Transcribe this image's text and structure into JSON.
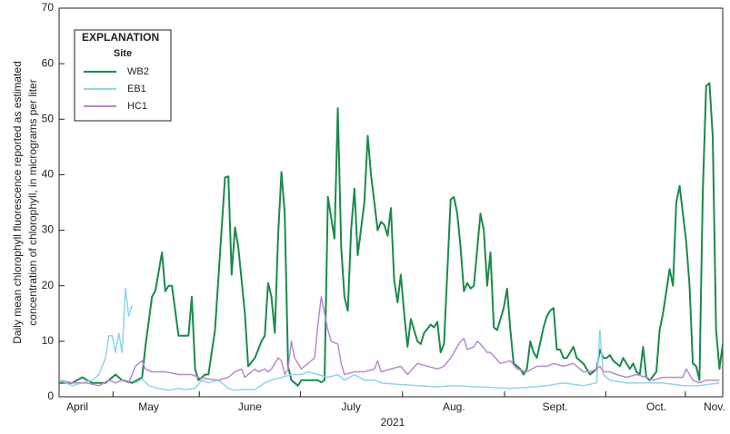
{
  "chart_data": {
    "type": "line",
    "y_label_lines": [
      "Daily mean chlorophyll fluorescence reported as estimated",
      "concentration of chlorophyll, in micrograms per liter"
    ],
    "x_label": "2021",
    "legend_title": "EXPLANATION",
    "legend_subtitle": "Site",
    "xlim": [
      109,
      309
    ],
    "xticks": [
      {
        "value": 114.5,
        "label": "April"
      },
      {
        "value": 136,
        "label": "May"
      },
      {
        "value": 166.5,
        "label": "June"
      },
      {
        "value": 197,
        "label": "July"
      },
      {
        "value": 228,
        "label": "Aug."
      },
      {
        "value": 258.5,
        "label": "Sept."
      },
      {
        "value": 289,
        "label": "Oct."
      },
      {
        "value": 306.5,
        "label": "Nov."
      }
    ],
    "ylim": [
      0,
      70
    ],
    "yticks": [
      0,
      10,
      20,
      30,
      40,
      50,
      60,
      70
    ],
    "series": [
      {
        "name": "WB2",
        "color": "#1b8a4c",
        "x": [
          109,
          113,
          116,
          119,
          123,
          126,
          128,
          131,
          134,
          135,
          137,
          138,
          140,
          141,
          142,
          143,
          145,
          147,
          148,
          149,
          150,
          151,
          153,
          154,
          156,
          159,
          160,
          161,
          162,
          163,
          165,
          166,
          168,
          170,
          171,
          172,
          173,
          174,
          175,
          176,
          177,
          178,
          179,
          181,
          182,
          184,
          187,
          188,
          189,
          190,
          192,
          193,
          194,
          195,
          196,
          197,
          198,
          199,
          201,
          202,
          203,
          204,
          205,
          206,
          207,
          208,
          209,
          210,
          211,
          212,
          213,
          214,
          215,
          217,
          218,
          219,
          221,
          222,
          223,
          224,
          225,
          227,
          228,
          229,
          230,
          231,
          232,
          233,
          234,
          236,
          237,
          238,
          239,
          240,
          241,
          242,
          243,
          244,
          245,
          246,
          248,
          249,
          250,
          251,
          252,
          253,
          255,
          256,
          257,
          258,
          259,
          260,
          261,
          262,
          263,
          264,
          265,
          267,
          268,
          269,
          270,
          271,
          272,
          273,
          274,
          275,
          276,
          278,
          279,
          280,
          281,
          282,
          283,
          284,
          285,
          286,
          287,
          289,
          290,
          291,
          292,
          293,
          294,
          295,
          296,
          297,
          298,
          299,
          300,
          301,
          302,
          303,
          304,
          305,
          306,
          307,
          308,
          309
        ],
        "values": [
          2.5,
          2.5,
          3.5,
          2.5,
          2.5,
          4,
          3,
          2.5,
          3.5,
          9,
          18,
          19,
          26,
          19,
          20,
          20,
          11,
          11,
          11,
          18,
          5,
          3,
          4,
          4,
          12,
          39.5,
          39.7,
          22,
          30.5,
          27,
          15,
          5.5,
          7,
          10,
          11,
          20.5,
          18,
          11.5,
          29,
          40.5,
          33,
          5.5,
          3,
          2,
          3,
          3,
          3,
          2.6,
          3,
          36,
          28.5,
          52,
          27,
          18,
          15.5,
          30,
          37.5,
          25.5,
          35,
          47,
          40,
          35,
          30,
          31.5,
          31,
          29,
          34,
          21,
          17,
          22,
          15,
          9,
          14,
          10,
          9.5,
          11.5,
          13,
          12.5,
          13.5,
          8,
          9.5,
          35.5,
          36,
          33,
          27,
          19,
          20.5,
          19.5,
          20,
          33,
          30,
          20,
          26,
          12.5,
          12,
          14,
          16,
          19.5,
          12,
          6,
          5,
          4,
          5,
          10,
          8,
          7,
          12.5,
          14.5,
          15.5,
          16,
          8.5,
          8.5,
          7,
          7,
          8,
          9,
          7,
          6,
          5,
          4,
          4.5,
          5,
          8.5,
          7,
          7,
          7.5,
          6.5,
          5.5,
          7,
          6,
          5,
          6,
          4.5,
          4,
          9,
          3.5,
          3,
          4.5,
          12,
          15,
          19,
          23,
          20,
          35,
          38,
          33,
          28,
          20,
          6,
          5.5,
          3,
          37,
          56,
          56.5,
          47,
          12,
          5,
          9.5
        ]
      },
      {
        "name": "EB1",
        "color": "#8fd4ea",
        "x": [
          109,
          111,
          113,
          116,
          119,
          121,
          123,
          124,
          125,
          126,
          127,
          128,
          129,
          130,
          131,
          null,
          132,
          134,
          136,
          139,
          142,
          145,
          147,
          150,
          152,
          154,
          157,
          160,
          162,
          165,
          168,
          171,
          173,
          176,
          179,
          182,
          184,
          187,
          190,
          193,
          195,
          198,
          201,
          204,
          206,
          212,
          217,
          223,
          228,
          234,
          239,
          245,
          250,
          256,
          261,
          267,
          271,
          272,
          273,
          275,
          280,
          286,
          291,
          297,
          302,
          308
        ],
        "values": [
          3,
          2.5,
          2,
          2.5,
          3,
          4,
          7,
          11,
          11,
          8,
          11.5,
          8,
          19.5,
          14.5,
          16.5,
          null,
          2.5,
          3.2,
          2,
          1.5,
          1.2,
          1.5,
          1.3,
          1.5,
          3,
          2.5,
          3,
          1.5,
          1.2,
          1.3,
          1.3,
          2.5,
          3,
          3.5,
          4,
          4,
          4.5,
          4,
          3.5,
          4,
          3,
          4,
          3,
          3,
          2.5,
          2.2,
          2,
          1.8,
          2,
          1.8,
          1.7,
          1.5,
          1.7,
          2,
          2.5,
          2,
          2.5,
          12,
          4,
          3,
          2.5,
          2.5,
          2.5,
          2,
          2,
          2.5
        ]
      },
      {
        "name": "HC1",
        "color": "#b98bcb",
        "x": [
          109,
          113,
          117,
          121,
          124,
          126,
          128,
          130,
          131,
          132,
          134,
          135,
          137,
          141,
          145,
          149,
          151,
          154,
          157,
          160,
          162,
          164,
          165,
          167,
          168,
          169,
          171,
          172,
          173,
          175,
          176,
          177,
          178,
          179,
          180,
          182,
          184,
          186,
          187,
          188,
          190,
          191,
          193,
          194,
          195,
          198,
          201,
          204,
          205,
          206,
          209,
          212,
          214,
          217,
          220,
          223,
          225,
          227,
          228,
          230,
          231,
          232,
          234,
          235,
          236,
          238,
          239,
          242,
          245,
          247,
          250,
          253,
          256,
          258,
          261,
          264,
          267,
          269,
          271,
          272,
          273,
          275,
          277,
          280,
          283,
          286,
          288,
          291,
          294,
          297,
          298,
          300,
          302,
          304,
          308
        ],
        "values": [
          3,
          2.5,
          2.5,
          2,
          3,
          2.5,
          3,
          2.5,
          4,
          5.5,
          6.5,
          5,
          4.5,
          4.5,
          4,
          4,
          3.5,
          3.2,
          3,
          3.5,
          4.5,
          5,
          3.5,
          4.5,
          5,
          4.5,
          5,
          4.5,
          5,
          7,
          6.5,
          4,
          5,
          10,
          7,
          5,
          6,
          7,
          13,
          18,
          12,
          10,
          9.5,
          6,
          4,
          4.5,
          4.5,
          5,
          6.5,
          4.5,
          5,
          5.5,
          4,
          6,
          5.5,
          5,
          5.5,
          7,
          8,
          10,
          10.5,
          8.5,
          9,
          10,
          9.5,
          8,
          8,
          6,
          6.5,
          5,
          4.5,
          5.5,
          5.5,
          6,
          5.5,
          6,
          4.5,
          4.5,
          5,
          5.5,
          4.5,
          4.5,
          4,
          3.5,
          4,
          3.5,
          3,
          3.5,
          3.5,
          3.5,
          5,
          3,
          2.5,
          3,
          3
        ]
      }
    ]
  }
}
